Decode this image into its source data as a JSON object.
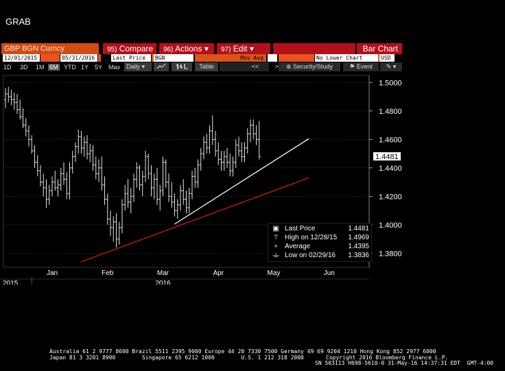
{
  "window_title": "GRAB",
  "header": {
    "security": "GBP BGN Curncy",
    "compare": {
      "num": "95)",
      "label": "Compare"
    },
    "actions": {
      "num": "96)",
      "label": "Actions",
      "arrow": "▾"
    },
    "edit": {
      "num": "97)",
      "label": "Edit",
      "arrow": "▾"
    },
    "chart_type": "Bar Chart"
  },
  "fields": {
    "start_date": "12/01/2015",
    "end_date": "05/31/2016",
    "price_field": "Last Price",
    "source": "BGN",
    "mov_avg_label": "Mov Avg",
    "lower_chart": "No Lower Chart",
    "currency": "USD"
  },
  "toolbar": {
    "periods": [
      "1D",
      "3D",
      "1M",
      "6M",
      "YTD",
      "1Y",
      "5Y",
      "Max"
    ],
    "selected_period": "6M",
    "frequency": "Daily",
    "table_label": "Table",
    "scroll_back": "<<",
    "scroll_fwd": ">>",
    "security_study": "Security/Study",
    "event": "Event"
  },
  "legend": {
    "last_price_label": "Last Price",
    "last_price_value": "1.4481",
    "high_label": "High on 12/28/15",
    "high_value": "1.4969",
    "average_label": "Average",
    "average_value": "1.4395",
    "low_label": "Low on 02/29/16",
    "low_value": "1.3836"
  },
  "chart_data": {
    "type": "bar",
    "subtype": "ohlc",
    "y_ticks": [
      "1.5000",
      "1.4800",
      "1.4600",
      "1.4400",
      "1.4200",
      "1.4000",
      "1.3800"
    ],
    "ylim": [
      1.37,
      1.505
    ],
    "x_ticks": [
      "Jan",
      "Feb",
      "Mar",
      "Apr",
      "May",
      "Jun"
    ],
    "x_year_labels": [
      "2015",
      "2016"
    ],
    "last_price": "1.4481",
    "series_ohlc": [
      [
        1.488,
        1.496,
        1.482,
        1.492
      ],
      [
        1.492,
        1.497,
        1.486,
        1.49
      ],
      [
        1.49,
        1.495,
        1.484,
        1.488
      ],
      [
        1.488,
        1.493,
        1.481,
        1.486
      ],
      [
        1.486,
        1.492,
        1.478,
        1.481
      ],
      [
        1.481,
        1.488,
        1.474,
        1.476
      ],
      [
        1.476,
        1.482,
        1.468,
        1.47
      ],
      [
        1.47,
        1.475,
        1.462,
        1.466
      ],
      [
        1.466,
        1.47,
        1.455,
        1.46
      ],
      [
        1.46,
        1.463,
        1.45,
        1.452
      ],
      [
        1.452,
        1.456,
        1.44,
        1.444
      ],
      [
        1.444,
        1.449,
        1.434,
        1.438
      ],
      [
        1.438,
        1.442,
        1.427,
        1.43
      ],
      [
        1.43,
        1.436,
        1.42,
        1.426
      ],
      [
        1.426,
        1.432,
        1.412,
        1.418
      ],
      [
        1.418,
        1.428,
        1.414,
        1.424
      ],
      [
        1.424,
        1.434,
        1.42,
        1.43
      ],
      [
        1.43,
        1.438,
        1.424,
        1.426
      ],
      [
        1.426,
        1.432,
        1.42,
        1.428
      ],
      [
        1.428,
        1.44,
        1.424,
        1.436
      ],
      [
        1.436,
        1.444,
        1.428,
        1.432
      ],
      [
        1.432,
        1.437,
        1.418,
        1.422
      ],
      [
        1.422,
        1.444,
        1.418,
        1.44
      ],
      [
        1.44,
        1.452,
        1.436,
        1.448
      ],
      [
        1.448,
        1.458,
        1.444,
        1.455
      ],
      [
        1.455,
        1.467,
        1.45,
        1.462
      ],
      [
        1.462,
        1.466,
        1.45,
        1.454
      ],
      [
        1.454,
        1.462,
        1.448,
        1.458
      ],
      [
        1.458,
        1.463,
        1.446,
        1.45
      ],
      [
        1.45,
        1.457,
        1.444,
        1.452
      ],
      [
        1.452,
        1.456,
        1.438,
        1.442
      ],
      [
        1.442,
        1.448,
        1.432,
        1.436
      ],
      [
        1.436,
        1.446,
        1.43,
        1.44
      ],
      [
        1.44,
        1.448,
        1.424,
        1.428
      ],
      [
        1.428,
        1.434,
        1.414,
        1.418
      ],
      [
        1.418,
        1.422,
        1.4,
        1.404
      ],
      [
        1.404,
        1.41,
        1.392,
        1.398
      ],
      [
        1.398,
        1.406,
        1.388,
        1.402
      ],
      [
        1.402,
        1.408,
        1.384,
        1.39
      ],
      [
        1.39,
        1.402,
        1.386,
        1.398
      ],
      [
        1.398,
        1.418,
        1.394,
        1.414
      ],
      [
        1.414,
        1.428,
        1.41,
        1.422
      ],
      [
        1.422,
        1.432,
        1.412,
        1.416
      ],
      [
        1.416,
        1.426,
        1.408,
        1.42
      ],
      [
        1.42,
        1.436,
        1.416,
        1.432
      ],
      [
        1.432,
        1.444,
        1.426,
        1.44
      ],
      [
        1.44,
        1.442,
        1.424,
        1.428
      ],
      [
        1.428,
        1.438,
        1.42,
        1.434
      ],
      [
        1.434,
        1.452,
        1.43,
        1.448
      ],
      [
        1.448,
        1.45,
        1.432,
        1.436
      ],
      [
        1.436,
        1.442,
        1.42,
        1.426
      ],
      [
        1.426,
        1.436,
        1.418,
        1.432
      ],
      [
        1.432,
        1.44,
        1.414,
        1.418
      ],
      [
        1.418,
        1.428,
        1.41,
        1.424
      ],
      [
        1.424,
        1.448,
        1.42,
        1.444
      ],
      [
        1.444,
        1.446,
        1.426,
        1.43
      ],
      [
        1.43,
        1.436,
        1.416,
        1.42
      ],
      [
        1.42,
        1.43,
        1.412,
        1.416
      ],
      [
        1.416,
        1.422,
        1.406,
        1.41
      ],
      [
        1.41,
        1.418,
        1.404,
        1.414
      ],
      [
        1.414,
        1.428,
        1.41,
        1.424
      ],
      [
        1.424,
        1.432,
        1.414,
        1.418
      ],
      [
        1.418,
        1.424,
        1.408,
        1.412
      ],
      [
        1.412,
        1.426,
        1.408,
        1.422
      ],
      [
        1.422,
        1.438,
        1.418,
        1.434
      ],
      [
        1.434,
        1.44,
        1.426,
        1.43
      ],
      [
        1.43,
        1.446,
        1.426,
        1.442
      ],
      [
        1.442,
        1.454,
        1.438,
        1.45
      ],
      [
        1.45,
        1.462,
        1.446,
        1.458
      ],
      [
        1.458,
        1.464,
        1.45,
        1.454
      ],
      [
        1.454,
        1.47,
        1.45,
        1.466
      ],
      [
        1.466,
        1.477,
        1.456,
        1.46
      ],
      [
        1.46,
        1.466,
        1.448,
        1.452
      ],
      [
        1.452,
        1.458,
        1.442,
        1.446
      ],
      [
        1.446,
        1.452,
        1.438,
        1.444
      ],
      [
        1.444,
        1.452,
        1.438,
        1.448
      ],
      [
        1.448,
        1.454,
        1.44,
        1.444
      ],
      [
        1.444,
        1.45,
        1.434,
        1.438
      ],
      [
        1.438,
        1.448,
        1.434,
        1.444
      ],
      [
        1.444,
        1.46,
        1.44,
        1.456
      ],
      [
        1.456,
        1.462,
        1.448,
        1.452
      ],
      [
        1.452,
        1.458,
        1.444,
        1.448
      ],
      [
        1.448,
        1.458,
        1.444,
        1.454
      ],
      [
        1.454,
        1.468,
        1.45,
        1.464
      ],
      [
        1.464,
        1.474,
        1.458,
        1.47
      ],
      [
        1.47,
        1.474,
        1.46,
        1.464
      ],
      [
        1.464,
        1.47,
        1.456,
        1.46
      ],
      [
        1.46,
        1.473,
        1.446,
        1.448
      ]
    ],
    "trendlines": [
      {
        "color": "#ffffff",
        "from": {
          "index": 58,
          "value": 1.4005
        },
        "to": {
          "index": 104,
          "value": 1.4605
        }
      },
      {
        "color": "#d21616",
        "from": {
          "index": 26,
          "value": 1.374
        },
        "to": {
          "index": 104,
          "value": 1.433
        }
      }
    ]
  },
  "footer": {
    "line1": "Australia 61 2 9777 8600 Brazil 5511 2395 9000 Europe 44 20 7330 7500 Germany 49 69 9204 1210 Hong Kong 852 2977 6000",
    "line2": "Japan 81 3 3201 8900        Singapore 65 6212 1000        U.S. 1 212 318 2000",
    "line3": "Copyright 2016 Bloomberg Finance L.P.",
    "line4": "SN 503113 H698-5610-0 31-May-16 14:37:31 EDT  GMT-4:00"
  },
  "colors": {
    "background": "#000000",
    "header_red": "#b3101a",
    "header_orange": "#d24a14",
    "support_line": "#d21616",
    "trend_line": "#ffffff"
  }
}
